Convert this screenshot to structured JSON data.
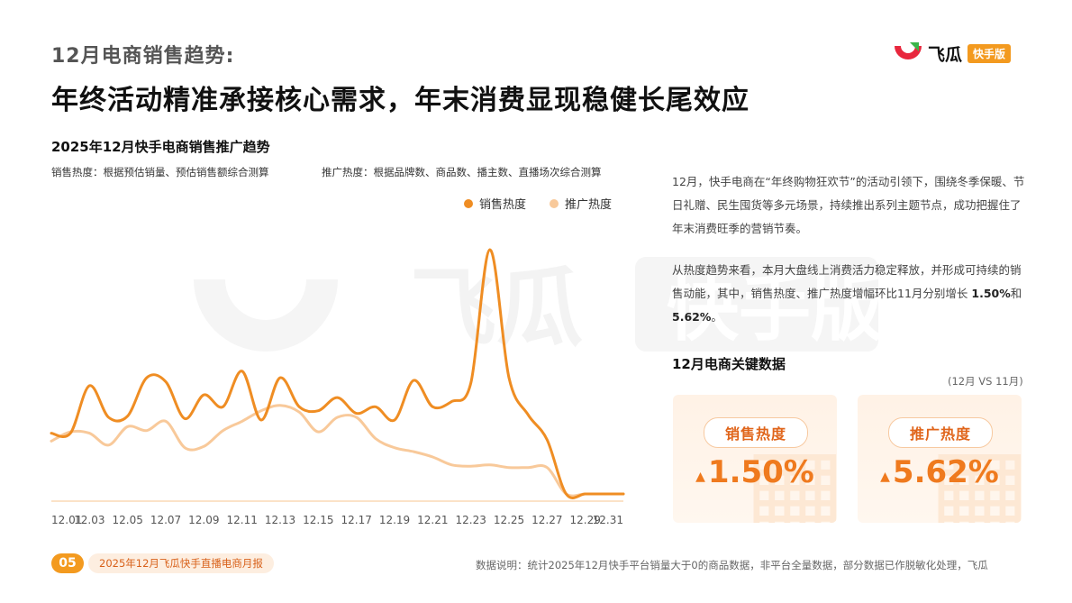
{
  "header": {
    "subtitle": "12月电商销售趋势:",
    "title": "年终活动精准承接核心需求，年末消费显现稳健长尾效应"
  },
  "logo": {
    "name": "飞瓜",
    "badge": "快手版"
  },
  "chart_data": {
    "type": "line",
    "title": "2025年12月快手电商销售推广趋势",
    "notes": [
      "销售热度：根据预估销量、预估销售额综合测算",
      "推广热度：根据品牌数、商品数、播主数、直播场次综合测算"
    ],
    "x": [
      "12.01",
      "12.02",
      "12.03",
      "12.04",
      "12.05",
      "12.06",
      "12.07",
      "12.08",
      "12.09",
      "12.10",
      "12.11",
      "12.12",
      "12.13",
      "12.14",
      "12.15",
      "12.16",
      "12.17",
      "12.18",
      "12.19",
      "12.20",
      "12.21",
      "12.22",
      "12.23",
      "12.24",
      "12.25",
      "12.26",
      "12.27",
      "12.28",
      "12.29",
      "12.30",
      "12.31"
    ],
    "tick_labels": [
      "12.01",
      "12.03",
      "12.05",
      "12.07",
      "12.09",
      "12.11",
      "12.13",
      "12.15",
      "12.17",
      "12.19",
      "12.21",
      "12.23",
      "12.25",
      "12.27",
      "12.29",
      "12.31"
    ],
    "series": [
      {
        "name": "销售热度",
        "color": "#ef8d23",
        "values": [
          46,
          46,
          82,
          58,
          59,
          88,
          85,
          57,
          75,
          66,
          93,
          56,
          88,
          66,
          63,
          73,
          61,
          66,
          56,
          86,
          66,
          70,
          84,
          185,
          88,
          60,
          41,
          0,
          0,
          0,
          0
        ]
      },
      {
        "name": "推广热度",
        "color": "#f8c99a",
        "values": [
          40,
          47,
          46,
          37,
          51,
          48,
          55,
          35,
          36,
          48,
          55,
          63,
          67,
          62,
          47,
          58,
          58,
          42,
          35,
          32,
          28,
          22,
          21,
          22,
          20,
          20,
          20,
          0,
          0,
          0,
          0
        ]
      }
    ],
    "legend_position": "top-right",
    "grid": false
  },
  "summary": {
    "para1": "12月，快手电商在“年终购物狂欢节”的活动引领下，围绕冬季保暖、节日礼赠、民生囤货等多元场景，持续推出系列主题节点，成功把握住了年末消费旺季的营销节奏。",
    "para2_prefix": "从热度趋势来看，本月大盘线上消费活力稳定释放，并形成可持续的销售动能，其中，销售热度、推广热度增幅环比11月分别增长 ",
    "para2_v1": "1.50%",
    "para2_and": "和",
    "para2_v2": "5.62%",
    "para2_suffix": "。"
  },
  "key_data": {
    "title": "12月电商关键数据",
    "compare": "(12月 VS 11月)",
    "cards": [
      {
        "label": "销售热度",
        "arrow": "▲",
        "value": "1.50%"
      },
      {
        "label": "推广热度",
        "arrow": "▲",
        "value": "5.62%"
      }
    ]
  },
  "footer": {
    "page": "05",
    "report": "2025年12月飞瓜快手直播电商月报",
    "note": "数据说明：统计2025年12月快手平台销量大于0的商品数据，非平台全量数据，部分数据已作脱敏化处理，飞瓜"
  }
}
